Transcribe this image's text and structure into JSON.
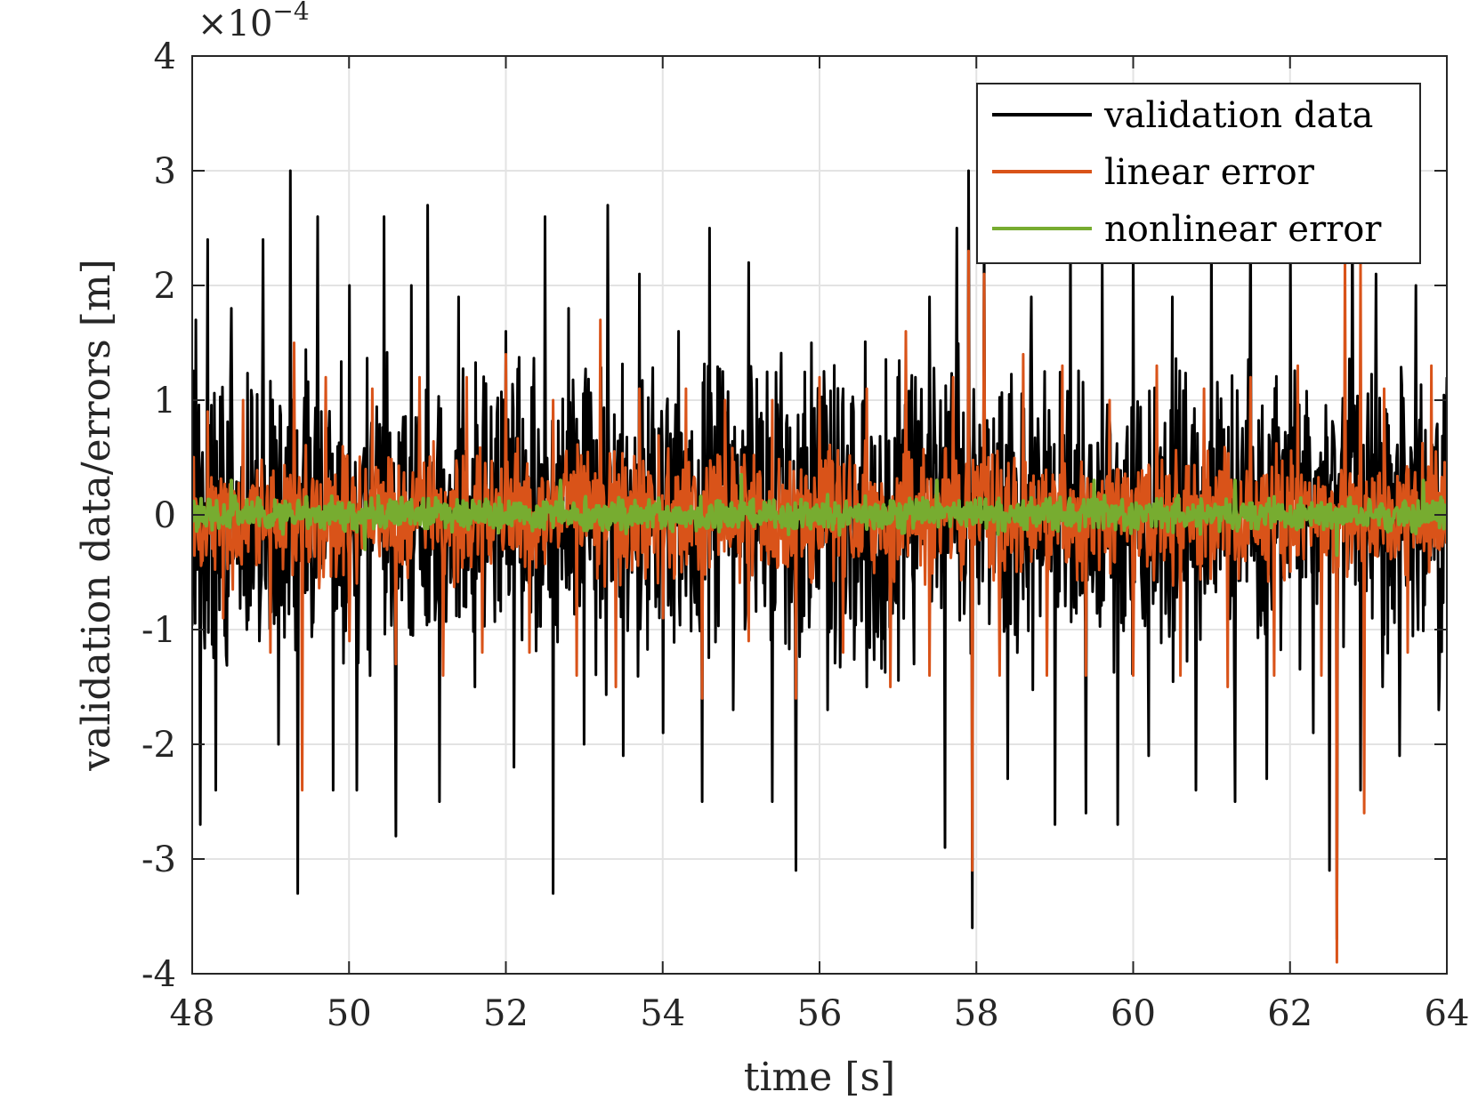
{
  "chart_data": {
    "type": "line",
    "xlabel": "time [s]",
    "ylabel": "validation data/errors [m]",
    "xlim": [
      48,
      64
    ],
    "ylim": [
      -4,
      4
    ],
    "y_scale_exponent": {
      "base": "×10",
      "power": "−4"
    },
    "xticks": [
      48,
      50,
      52,
      54,
      56,
      58,
      60,
      62,
      64
    ],
    "xtick_labels": [
      "48",
      "50",
      "52",
      "54",
      "56",
      "58",
      "60",
      "62",
      "64"
    ],
    "yticks": [
      -4,
      -3,
      -2,
      -1,
      0,
      1,
      2,
      3,
      4
    ],
    "ytick_labels": [
      "-4",
      "-3",
      "-2",
      "-1",
      "0",
      "1",
      "2",
      "3",
      "4"
    ],
    "grid": true,
    "legend_position": "top-right",
    "series": [
      {
        "name": "validation data",
        "color": "#000000",
        "amplitude": 1.6,
        "points": [
          [
            48.05,
            1.7
          ],
          [
            48.1,
            -2.7
          ],
          [
            48.2,
            2.4
          ],
          [
            48.3,
            -2.4
          ],
          [
            48.5,
            1.8
          ],
          [
            48.7,
            -1.0
          ],
          [
            48.9,
            2.4
          ],
          [
            49.1,
            -2.0
          ],
          [
            49.25,
            3.0
          ],
          [
            49.35,
            -3.3
          ],
          [
            49.6,
            2.6
          ],
          [
            49.8,
            -2.4
          ],
          [
            50.0,
            2.0
          ],
          [
            50.1,
            -2.4
          ],
          [
            50.45,
            2.6
          ],
          [
            50.6,
            -2.8
          ],
          [
            50.8,
            2.0
          ],
          [
            51.0,
            2.7
          ],
          [
            51.15,
            -2.5
          ],
          [
            51.4,
            1.9
          ],
          [
            51.6,
            -1.5
          ],
          [
            52.0,
            1.6
          ],
          [
            52.1,
            -2.2
          ],
          [
            52.5,
            2.6
          ],
          [
            52.6,
            -3.3
          ],
          [
            52.8,
            1.8
          ],
          [
            53.0,
            -2.0
          ],
          [
            53.3,
            2.7
          ],
          [
            53.5,
            -2.1
          ],
          [
            53.7,
            2.1
          ],
          [
            54.0,
            -1.9
          ],
          [
            54.2,
            1.6
          ],
          [
            54.5,
            -2.5
          ],
          [
            54.6,
            2.5
          ],
          [
            54.9,
            -1.7
          ],
          [
            55.1,
            2.2
          ],
          [
            55.4,
            -2.5
          ],
          [
            55.7,
            -3.1
          ],
          [
            55.9,
            1.5
          ],
          [
            56.1,
            -1.7
          ],
          [
            56.3,
            1.1
          ],
          [
            56.6,
            -1.5
          ],
          [
            57.0,
            1.2
          ],
          [
            57.2,
            -1.3
          ],
          [
            57.4,
            1.9
          ],
          [
            57.6,
            -2.9
          ],
          [
            57.75,
            2.5
          ],
          [
            57.9,
            3.0
          ],
          [
            57.95,
            -3.6
          ],
          [
            58.1,
            2.5
          ],
          [
            58.4,
            -2.3
          ],
          [
            58.7,
            1.9
          ],
          [
            59.0,
            -2.7
          ],
          [
            59.2,
            2.5
          ],
          [
            59.4,
            -2.6
          ],
          [
            59.6,
            2.2
          ],
          [
            59.8,
            -2.7
          ],
          [
            60.0,
            2.5
          ],
          [
            60.2,
            -2.1
          ],
          [
            60.5,
            1.9
          ],
          [
            60.8,
            -2.4
          ],
          [
            61.0,
            2.5
          ],
          [
            61.3,
            -2.5
          ],
          [
            61.5,
            2.7
          ],
          [
            61.7,
            -2.3
          ],
          [
            62.0,
            2.3
          ],
          [
            62.3,
            -1.9
          ],
          [
            62.5,
            -3.1
          ],
          [
            62.6,
            -3.7
          ],
          [
            62.8,
            2.7
          ],
          [
            62.9,
            -2.4
          ],
          [
            63.1,
            2.1
          ],
          [
            63.4,
            -2.1
          ],
          [
            63.6,
            2.0
          ],
          [
            63.9,
            -1.7
          ],
          [
            64.0,
            1.2
          ]
        ]
      },
      {
        "name": "linear error",
        "color": "#D95319",
        "amplitude": 0.7,
        "points": [
          [
            48.2,
            0.9
          ],
          [
            48.4,
            -0.9
          ],
          [
            48.65,
            1.0
          ],
          [
            49.0,
            -1.2
          ],
          [
            49.3,
            1.5
          ],
          [
            49.4,
            -2.4
          ],
          [
            49.7,
            1.2
          ],
          [
            50.0,
            -1.1
          ],
          [
            50.3,
            1.1
          ],
          [
            50.6,
            -1.3
          ],
          [
            50.9,
            1.2
          ],
          [
            51.2,
            -1.4
          ],
          [
            51.5,
            1.2
          ],
          [
            51.7,
            -1.2
          ],
          [
            52.0,
            1.4
          ],
          [
            52.3,
            -1.2
          ],
          [
            52.6,
            1.0
          ],
          [
            52.9,
            -1.4
          ],
          [
            53.2,
            1.7
          ],
          [
            53.4,
            -1.5
          ],
          [
            53.7,
            1.1
          ],
          [
            54.0,
            -0.9
          ],
          [
            54.3,
            1.1
          ],
          [
            54.5,
            -1.6
          ],
          [
            54.8,
            1.0
          ],
          [
            55.1,
            -1.1
          ],
          [
            55.4,
            1.0
          ],
          [
            55.7,
            -1.6
          ],
          [
            56.0,
            1.2
          ],
          [
            56.3,
            -1.2
          ],
          [
            56.6,
            1.1
          ],
          [
            56.9,
            -1.5
          ],
          [
            57.1,
            1.6
          ],
          [
            57.4,
            -1.4
          ],
          [
            57.7,
            1.2
          ],
          [
            57.9,
            2.3
          ],
          [
            57.95,
            -3.1
          ],
          [
            58.1,
            2.1
          ],
          [
            58.3,
            -1.4
          ],
          [
            58.6,
            1.4
          ],
          [
            58.9,
            -1.4
          ],
          [
            59.1,
            1.3
          ],
          [
            59.4,
            -1.4
          ],
          [
            59.7,
            1.0
          ],
          [
            60.0,
            -1.4
          ],
          [
            60.3,
            1.3
          ],
          [
            60.6,
            -1.4
          ],
          [
            60.9,
            1.1
          ],
          [
            61.2,
            -1.5
          ],
          [
            61.5,
            1.2
          ],
          [
            61.8,
            -1.4
          ],
          [
            62.1,
            1.3
          ],
          [
            62.4,
            -1.4
          ],
          [
            62.6,
            -3.9
          ],
          [
            62.7,
            2.3
          ],
          [
            62.9,
            2.2
          ],
          [
            62.95,
            -2.6
          ],
          [
            63.2,
            1.1
          ],
          [
            63.5,
            -1.2
          ],
          [
            63.8,
            1.3
          ]
        ]
      },
      {
        "name": "nonlinear error",
        "color": "#77AC30",
        "amplitude": 0.18,
        "points": [
          [
            48.5,
            0.3
          ],
          [
            50.2,
            -0.3
          ],
          [
            52.7,
            0.3
          ],
          [
            55.0,
            0.35
          ],
          [
            57.5,
            0.3
          ],
          [
            59.5,
            0.3
          ],
          [
            61.3,
            0.3
          ],
          [
            62.6,
            -0.35
          ],
          [
            63.7,
            0.3
          ]
        ]
      }
    ]
  }
}
